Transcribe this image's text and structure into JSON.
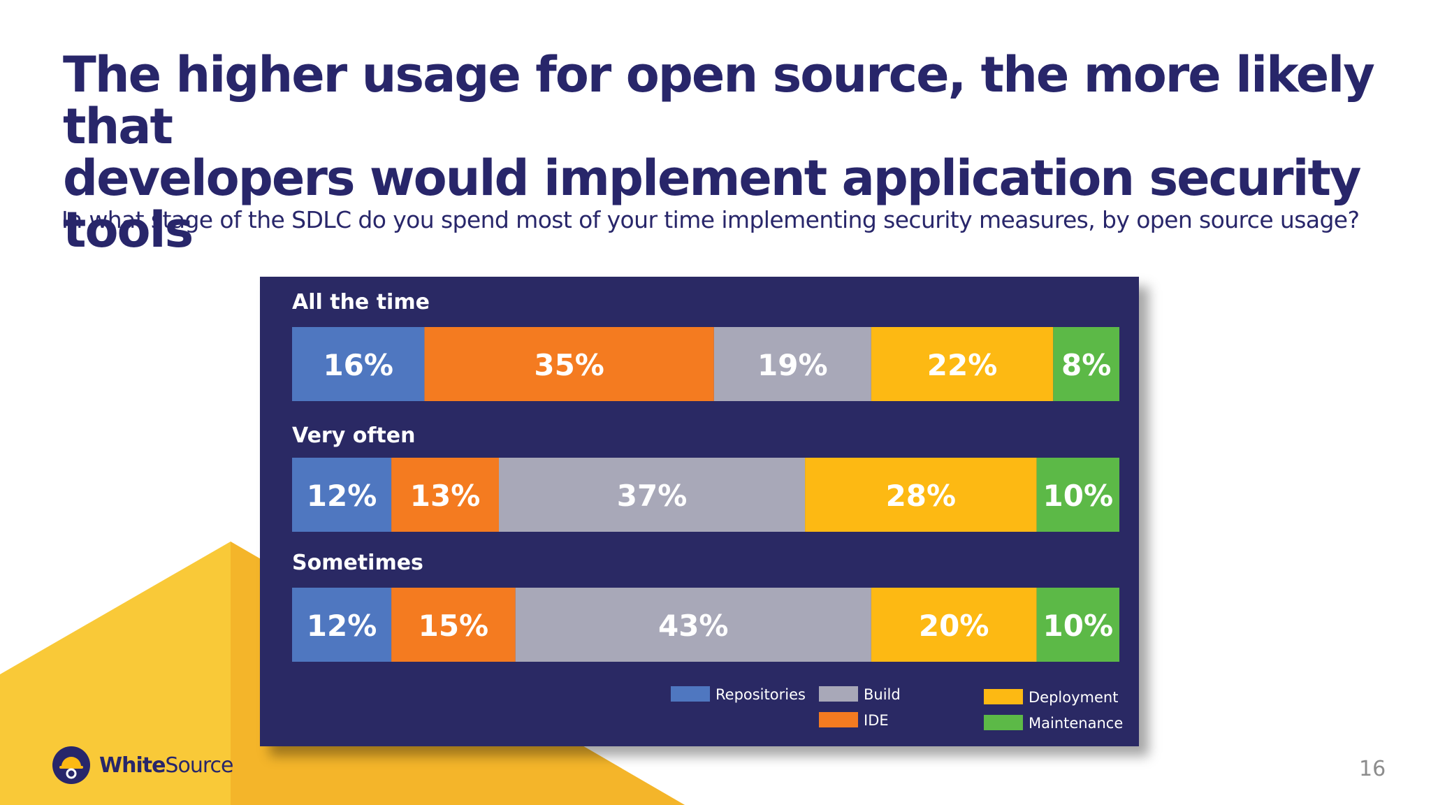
{
  "slide": {
    "title_line1": "The higher usage for open source, the more likely that",
    "title_line2": "developers would implement application security tools",
    "subtitle": "In what stage of the SDLC do you spend most of your time implementing security measures, by open source usage?",
    "page_number": "16",
    "logo": {
      "part1": "White",
      "part2": "Source"
    },
    "colors": {
      "title": "#28266a",
      "panel": "#2a2964",
      "decor_yellow": "#f6bd2b"
    }
  },
  "chart_data": {
    "type": "bar",
    "orientation": "horizontal-stacked-100",
    "categories": [
      "All the time",
      "Very often",
      "Sometimes"
    ],
    "series": [
      {
        "name": "Repositories",
        "color": "#4f77c0",
        "values": [
          16,
          12,
          12
        ]
      },
      {
        "name": "IDE",
        "color": "#f47b20",
        "values": [
          35,
          13,
          15
        ]
      },
      {
        "name": "Build",
        "color": "#a8a8b8",
        "values": [
          19,
          37,
          43
        ]
      },
      {
        "name": "Deployment",
        "color": "#fdb913",
        "values": [
          22,
          28,
          20
        ]
      },
      {
        "name": "Maintenance",
        "color": "#5cb947",
        "values": [
          8,
          10,
          10
        ]
      }
    ],
    "unit": "%",
    "legend_position": "bottom-right"
  }
}
